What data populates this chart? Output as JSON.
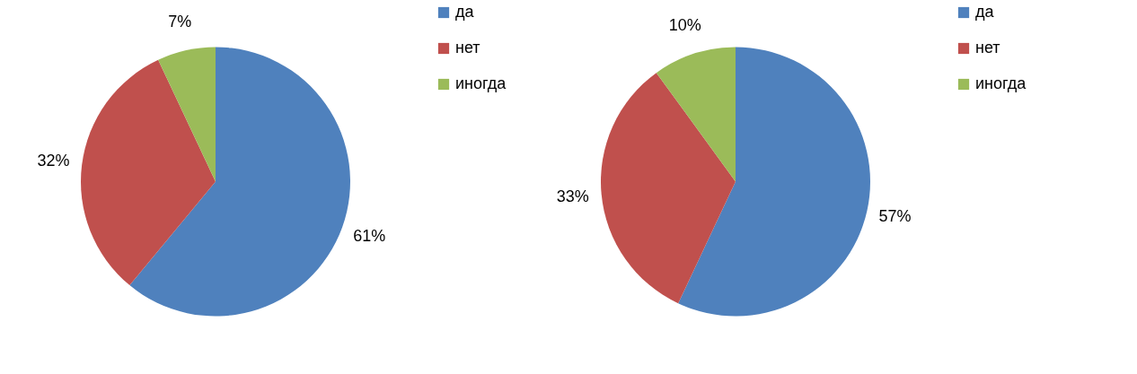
{
  "chart_data": [
    {
      "type": "pie",
      "categories": [
        "да",
        "нет",
        "иногда"
      ],
      "values": [
        61,
        32,
        7
      ],
      "value_labels": [
        "61%",
        "32%",
        "7%"
      ],
      "colors": [
        "#4f81bd",
        "#c0504d",
        "#9bbb59"
      ],
      "legend": "right"
    },
    {
      "type": "pie",
      "categories": [
        "да",
        "нет",
        "иногда"
      ],
      "values": [
        57,
        33,
        10
      ],
      "value_labels": [
        "57%",
        "33%",
        "10%"
      ],
      "colors": [
        "#4f81bd",
        "#c0504d",
        "#9bbb59"
      ],
      "legend": "right"
    }
  ]
}
